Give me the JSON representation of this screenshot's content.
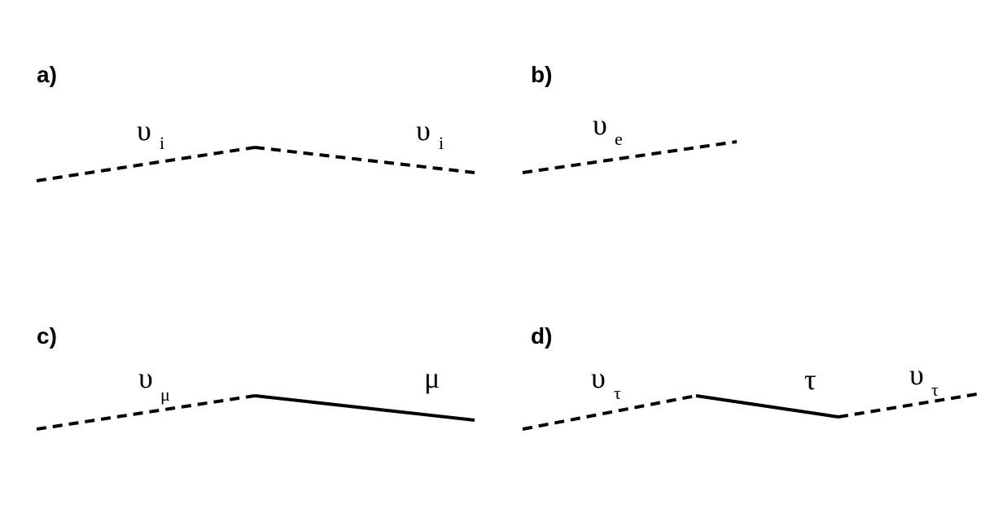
{
  "panels": [
    {
      "label": "a)",
      "incoming": {
        "symbol": "υ",
        "subscript": "i"
      },
      "outgoing": {
        "symbol": "υ",
        "subscript": "i"
      }
    },
    {
      "label": "b)",
      "incoming": {
        "symbol": "υ",
        "subscript": "e"
      }
    },
    {
      "label": "c)",
      "incoming": {
        "symbol": "υ",
        "subscript": "μ"
      },
      "outgoing": {
        "symbol": "μ",
        "subscript": ""
      }
    },
    {
      "label": "d)",
      "incoming": {
        "symbol": "υ",
        "subscript": "τ"
      },
      "intermediate": {
        "symbol": "τ",
        "subscript": ""
      },
      "outgoing": {
        "symbol": "υ",
        "subscript": "τ"
      }
    }
  ],
  "colors": {
    "line": "#000000",
    "background": "#ffffff"
  }
}
